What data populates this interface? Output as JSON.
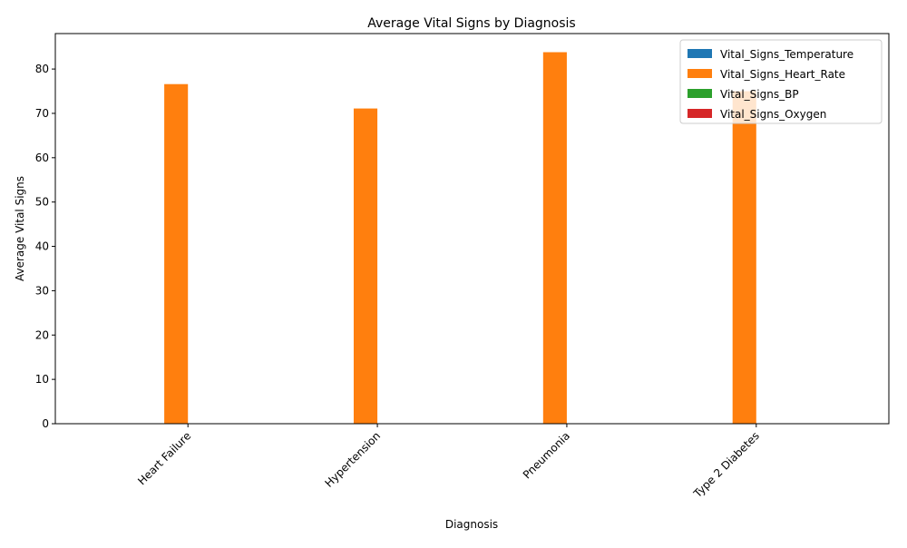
{
  "chart_data": {
    "type": "bar",
    "title": "Average Vital Signs by Diagnosis",
    "xlabel": "Diagnosis",
    "ylabel": "Average Vital Signs",
    "ylim": [
      0,
      88
    ],
    "yticks": [
      0,
      10,
      20,
      30,
      40,
      50,
      60,
      70,
      80
    ],
    "categories": [
      "Heart Failure",
      "Hypertension",
      "Pneumonia",
      "Type 2 Diabetes"
    ],
    "series": [
      {
        "name": "Vital_Signs_Temperature",
        "color": "#1f77b4",
        "values": [
          0,
          0,
          0,
          0
        ]
      },
      {
        "name": "Vital_Signs_Heart_Rate",
        "color": "#ff7f0e",
        "values": [
          76.6,
          71.1,
          83.8,
          75.0
        ]
      },
      {
        "name": "Vital_Signs_BP",
        "color": "#2ca02c",
        "values": [
          0,
          0,
          0,
          0
        ]
      },
      {
        "name": "Vital_Signs_Oxygen",
        "color": "#d62728",
        "values": [
          0,
          0,
          0,
          0
        ]
      }
    ],
    "legend_position": "top-right",
    "grid": false
  }
}
